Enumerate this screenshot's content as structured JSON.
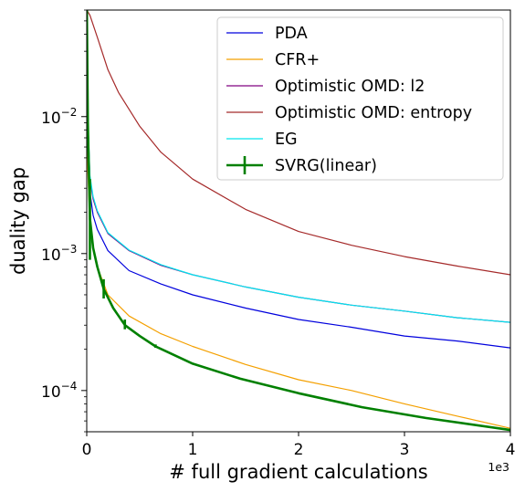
{
  "chart_data": {
    "type": "line",
    "xlabel": "# full gradient calculations",
    "ylabel": "duality gap",
    "x_offset_label": "1e3",
    "xlim": [
      0,
      4000
    ],
    "ylim": [
      5e-05,
      0.06
    ],
    "yscale": "log",
    "x_ticks": [
      {
        "value": 0,
        "label": "0"
      },
      {
        "value": 1000,
        "label": "1"
      },
      {
        "value": 2000,
        "label": "2"
      },
      {
        "value": 3000,
        "label": "3"
      },
      {
        "value": 4000,
        "label": "4"
      }
    ],
    "y_ticks": [
      {
        "value": 0.0001,
        "base": "10",
        "exp": "−4"
      },
      {
        "value": 0.001,
        "base": "10",
        "exp": "−3"
      },
      {
        "value": 0.01,
        "base": "10",
        "exp": "−2"
      }
    ],
    "grid": false,
    "legend_position": "top-right",
    "series": [
      {
        "name": "Optimistic OMD: l2",
        "color": "#800080",
        "stroke_width": 1.2,
        "x": [
          1,
          10,
          30,
          60,
          100,
          200,
          400,
          700,
          1000,
          1500,
          2000,
          2500,
          3000,
          3500,
          4000
        ],
        "y": [
          0.06,
          0.01,
          0.0035,
          0.0025,
          0.002,
          0.0014,
          0.00105,
          0.00082,
          0.0007,
          0.00057,
          0.00048,
          0.00042,
          0.00038,
          0.00034,
          0.000315
        ]
      },
      {
        "name": "EG",
        "color": "#00e5ee",
        "stroke_width": 1.2,
        "x": [
          1,
          10,
          30,
          60,
          100,
          200,
          400,
          700,
          1000,
          1500,
          2000,
          2500,
          3000,
          3500,
          4000
        ],
        "y": [
          0.06,
          0.01,
          0.0037,
          0.0026,
          0.00205,
          0.00142,
          0.00106,
          0.00083,
          0.0007,
          0.00057,
          0.00048,
          0.00042,
          0.00038,
          0.00034,
          0.000315
        ]
      },
      {
        "name": "PDA",
        "color": "#0000dd",
        "stroke_width": 1.2,
        "x": [
          1,
          10,
          30,
          60,
          100,
          200,
          400,
          700,
          1000,
          1500,
          2000,
          2500,
          3000,
          3500,
          4000
        ],
        "y": [
          0.06,
          0.008,
          0.0028,
          0.0019,
          0.0015,
          0.00105,
          0.00075,
          0.0006,
          0.0005,
          0.0004,
          0.00033,
          0.00029,
          0.00025,
          0.00023,
          0.000205
        ]
      },
      {
        "name": "CFR+",
        "color": "#f4a000",
        "stroke_width": 1.2,
        "x": [
          1,
          10,
          30,
          60,
          100,
          200,
          400,
          700,
          1000,
          1500,
          2000,
          2500,
          3000,
          3500,
          4000
        ],
        "y": [
          0.05,
          0.004,
          0.0017,
          0.0011,
          0.0008,
          0.0005,
          0.00035,
          0.00026,
          0.00021,
          0.000155,
          0.00012,
          0.0001,
          8e-05,
          6.5e-05,
          5.3e-05
        ]
      },
      {
        "name": "Optimistic OMD: entropy",
        "color": "#a52a2a",
        "stroke_width": 1.2,
        "x": [
          1,
          30,
          100,
          200,
          300,
          500,
          700,
          1000,
          1500,
          2000,
          2500,
          3000,
          3500,
          4000
        ],
        "y": [
          0.06,
          0.055,
          0.038,
          0.022,
          0.015,
          0.0085,
          0.0055,
          0.0035,
          0.0021,
          0.00145,
          0.00115,
          0.00095,
          0.00081,
          0.0007
        ]
      },
      {
        "name": "SVRG(linear)",
        "color": "#008000",
        "stroke_width": 2.6,
        "x": [
          1,
          10,
          30,
          60,
          100,
          160,
          250,
          360,
          500,
          650,
          1000,
          1450,
          2000,
          2600,
          3200,
          4000
        ],
        "y": [
          0.06,
          0.009,
          0.0018,
          0.0011,
          0.0008,
          0.00055,
          0.0004,
          0.0003,
          0.00025,
          0.00021,
          0.000157,
          0.000122,
          9.55e-05,
          7.55e-05,
          6.3e-05,
          5.15e-05
        ],
        "error_bars": [
          {
            "x": 30,
            "low": 0.0009,
            "high": 0.0035
          },
          {
            "x": 160,
            "low": 0.00047,
            "high": 0.00065
          },
          {
            "x": 360,
            "low": 0.00028,
            "high": 0.00033
          },
          {
            "x": 650,
            "low": 0.000205,
            "high": 0.000217
          }
        ]
      }
    ],
    "legend": [
      {
        "name": "PDA",
        "color": "#0000dd",
        "stroke_width": 1.2,
        "errorbar": false
      },
      {
        "name": "CFR+",
        "color": "#f4a000",
        "stroke_width": 1.2,
        "errorbar": false
      },
      {
        "name": "Optimistic OMD: l2",
        "color": "#800080",
        "stroke_width": 1.2,
        "errorbar": false
      },
      {
        "name": "Optimistic OMD: entropy",
        "color": "#a52a2a",
        "stroke_width": 1.2,
        "errorbar": false
      },
      {
        "name": "EG",
        "color": "#00e5ee",
        "stroke_width": 1.2,
        "errorbar": false
      },
      {
        "name": "SVRG(linear)",
        "color": "#008000",
        "stroke_width": 2.6,
        "errorbar": true
      }
    ]
  }
}
